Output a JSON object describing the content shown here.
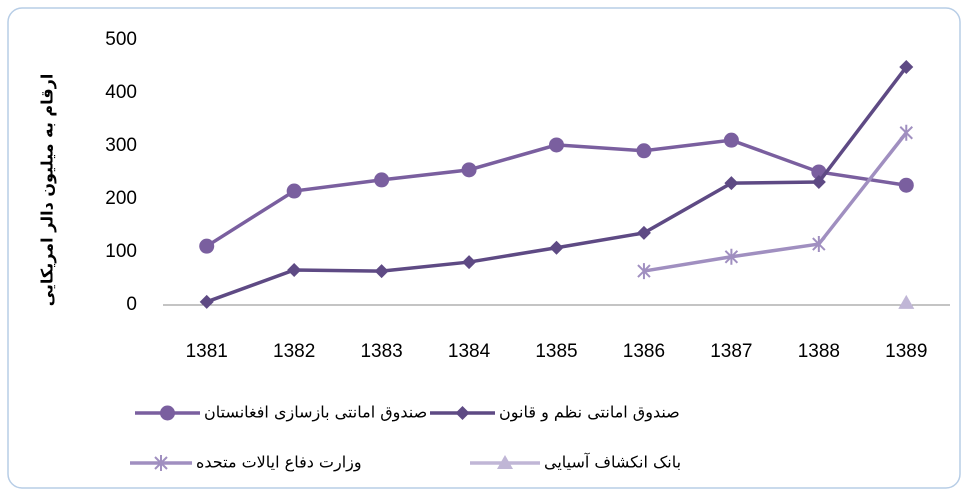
{
  "chart_data": {
    "type": "line",
    "y_label": "ارقام به میلیون دالر امریکایی",
    "categories": [
      "1381",
      "1382",
      "1383",
      "1384",
      "1385",
      "1386",
      "1387",
      "1388",
      "1389"
    ],
    "ylim": [
      0,
      500
    ],
    "yticks": [
      0,
      100,
      200,
      300,
      400,
      500
    ],
    "series": [
      {
        "name": "صندوق امانتی بازسازی افغانستان",
        "color": "#7a5f9f",
        "marker": "circle",
        "values": [
          111,
          215,
          236,
          255,
          302,
          291,
          311,
          251,
          226
        ]
      },
      {
        "name": "صندوق امانتی نظم و قانون",
        "color": "#5e4a84",
        "marker": "diamond",
        "values": [
          6,
          66,
          64,
          81,
          108,
          136,
          230,
          232,
          449
        ]
      },
      {
        "name": "وزارت دفاع ایالات متحده",
        "color": "#a08fc0",
        "marker": "asterisk",
        "values": [
          null,
          null,
          null,
          null,
          null,
          64,
          91,
          115,
          325
        ]
      },
      {
        "name": "بانک انکشاف آسیایی",
        "color": "#c0b6d6",
        "marker": "triangle",
        "values": [
          null,
          null,
          null,
          null,
          null,
          null,
          null,
          null,
          4
        ]
      }
    ]
  }
}
